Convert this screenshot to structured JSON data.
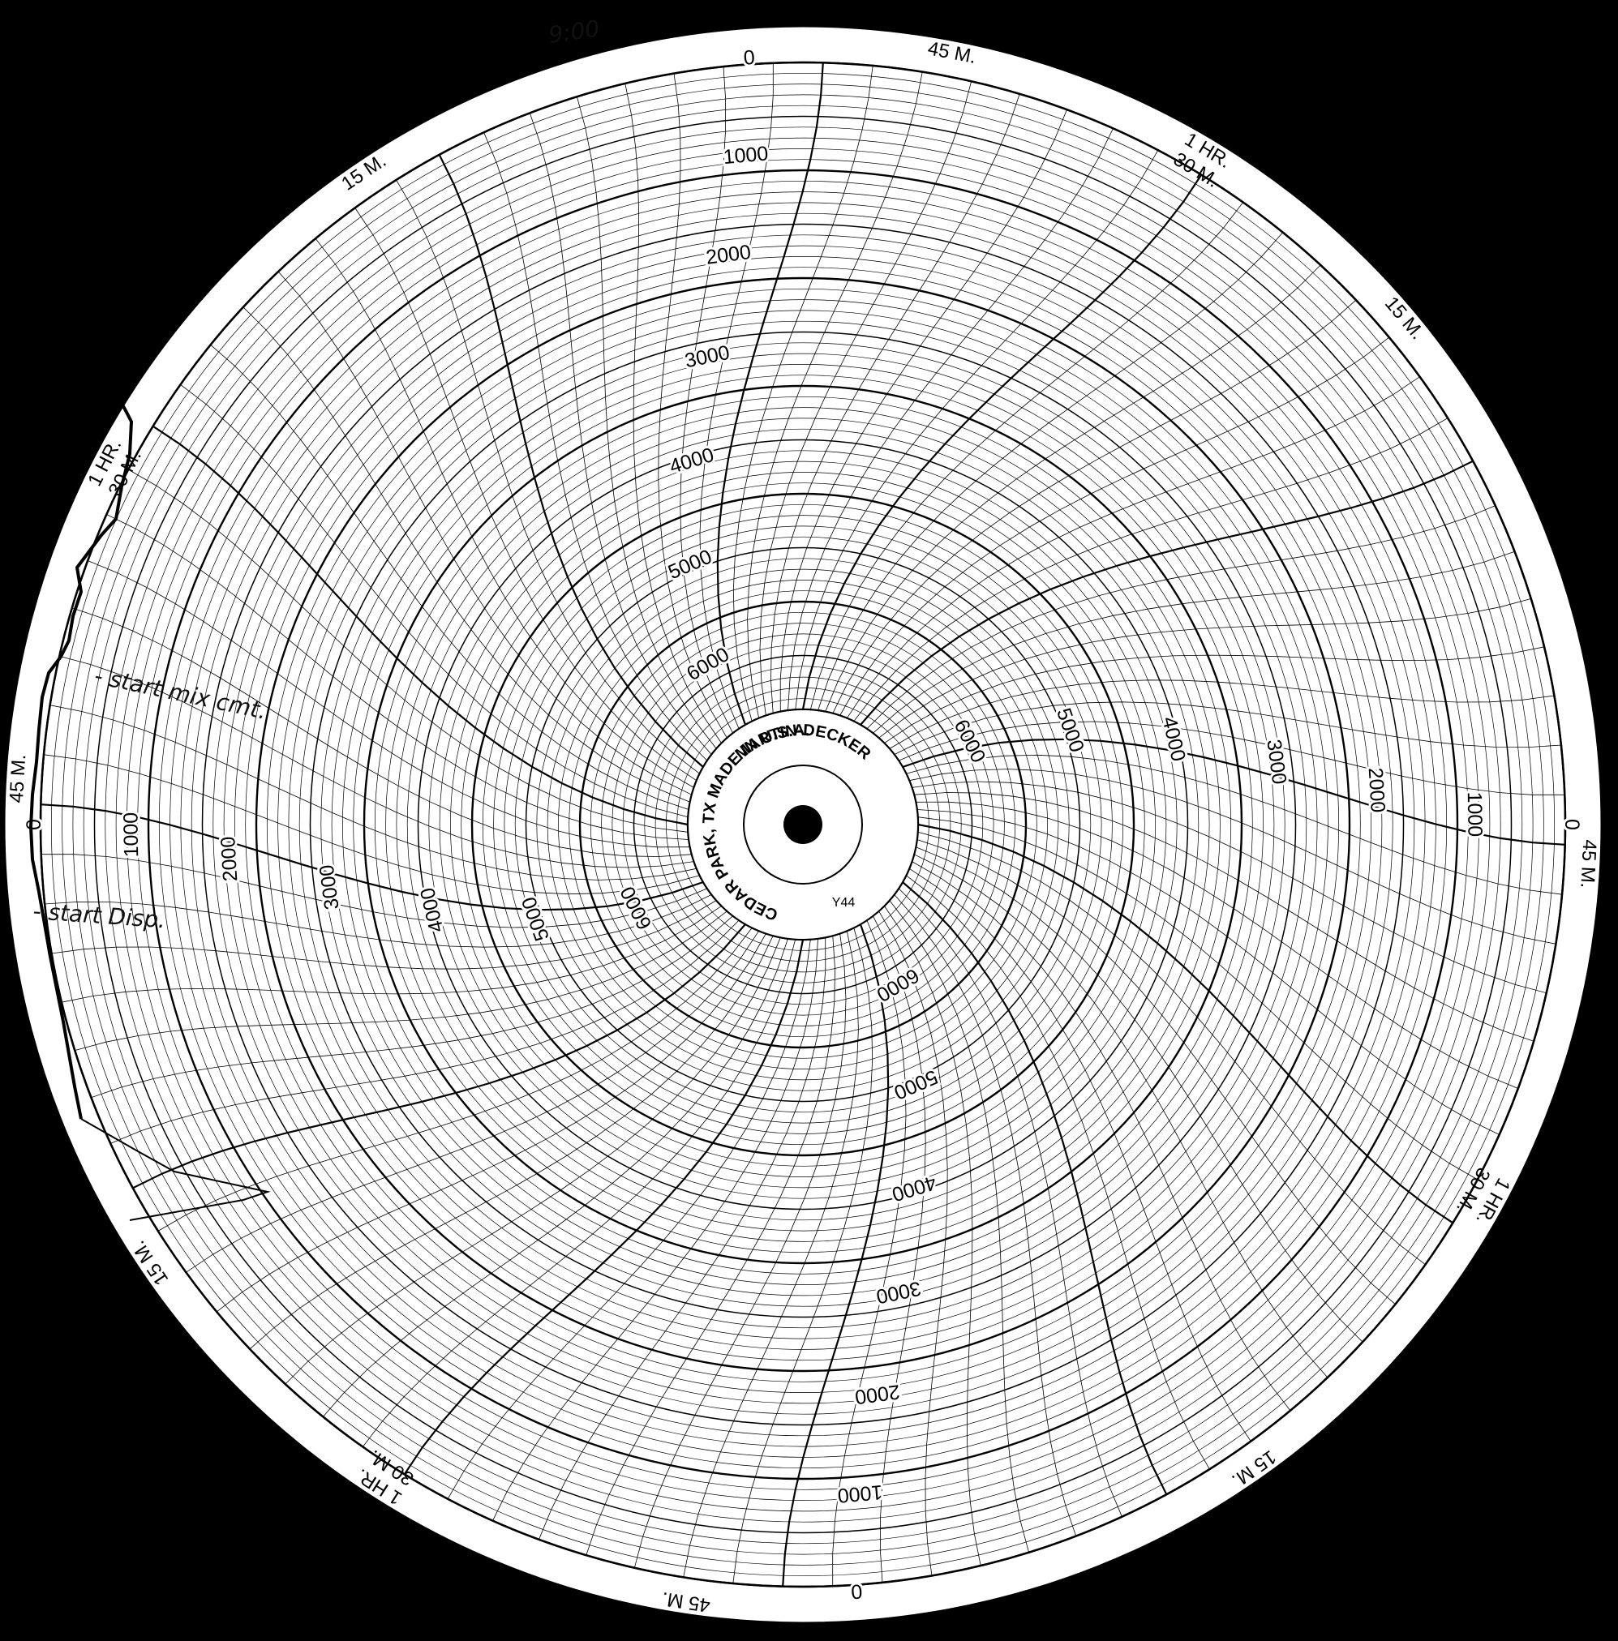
{
  "chart": {
    "manufacturer": "MARTIN-DECKER",
    "address": "CEDAR PARK, TX  MADE IN U.S.A.",
    "model": "Y44",
    "scale_labels": [
      "0",
      "1000",
      "2000",
      "3000",
      "4000",
      "5000",
      "6000"
    ],
    "sector_labels": [
      {
        "time": "1 HR.",
        "sub": "30 M."
      },
      {
        "time": "15 M.",
        "sub": ""
      },
      {
        "time": "45 M.",
        "sub": ""
      }
    ]
  },
  "annotations": {
    "time_written": "9:00",
    "note_1": "- start mix cmt.",
    "note_2": "- start Disp."
  },
  "trace": {
    "description_free": true
  }
}
